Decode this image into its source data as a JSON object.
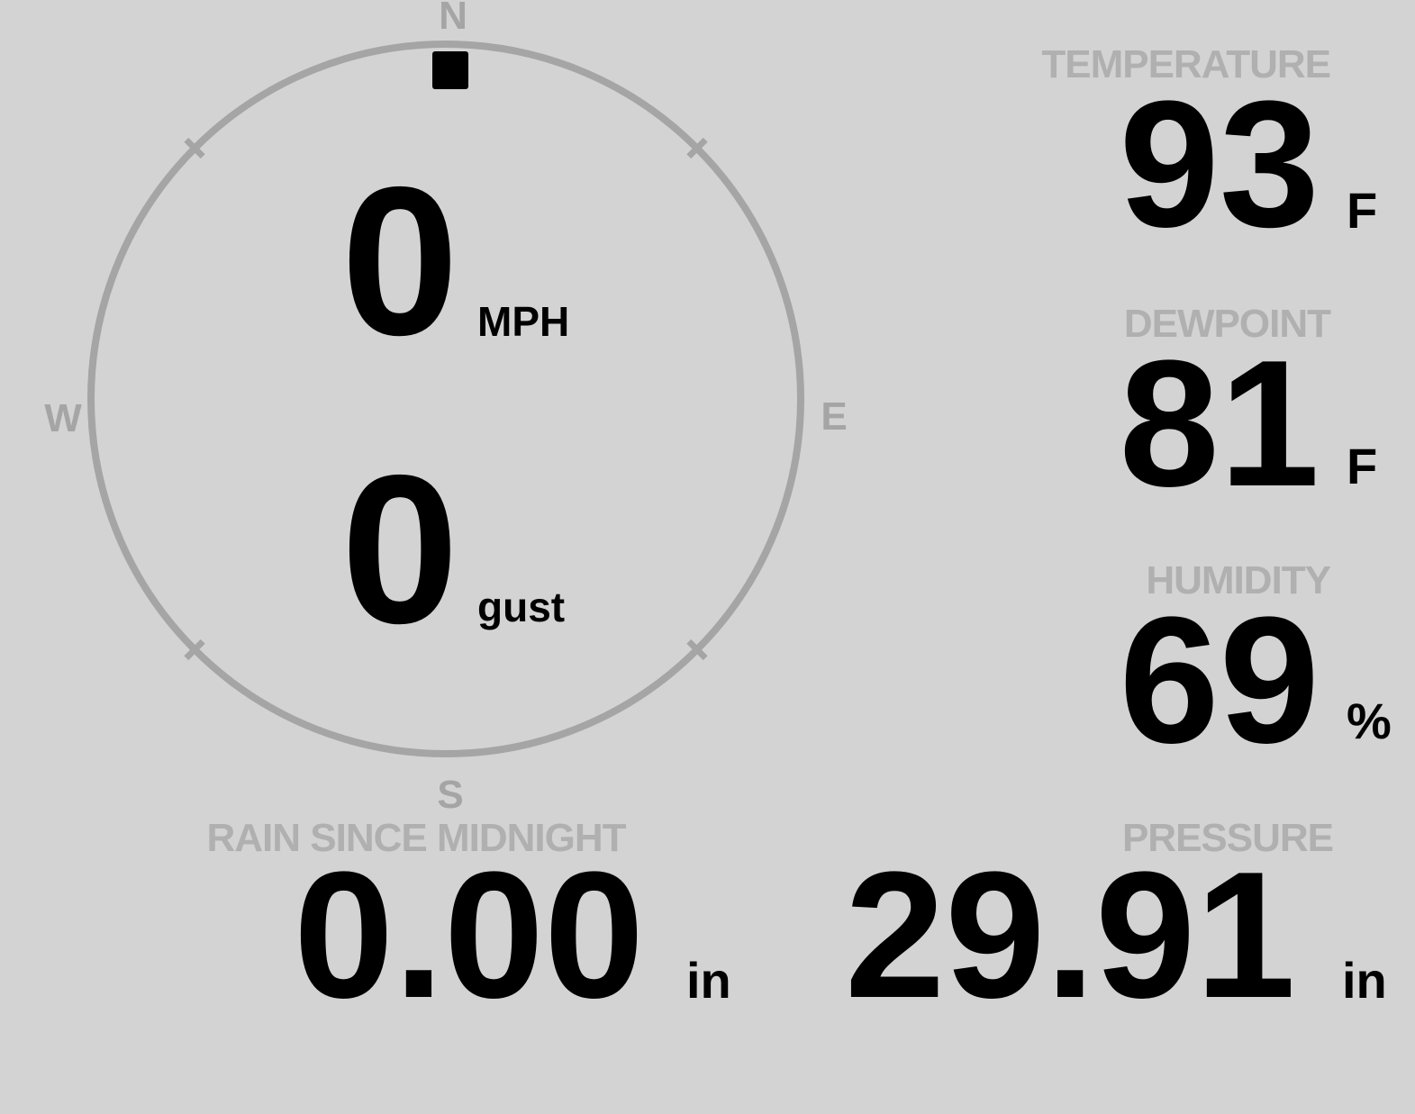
{
  "wind_gauge": {
    "speed": {
      "value": "0",
      "unit": "MPH"
    },
    "gust": {
      "value": "0",
      "unit": "gust"
    },
    "compass": {
      "north": "N",
      "east": "E",
      "south": "S",
      "west": "W"
    },
    "direction_deg": 0
  },
  "metrics": {
    "temperature": {
      "label": "TEMPERATURE",
      "value": "93",
      "unit": "F"
    },
    "dewpoint": {
      "label": "DEWPOINT",
      "value": "81",
      "unit": "F"
    },
    "humidity": {
      "label": "HUMIDITY",
      "value": "69",
      "unit": "%"
    },
    "rain_since_midnight": {
      "label": "RAIN SINCE MIDNIGHT",
      "value": "0.00",
      "unit": "in"
    },
    "pressure": {
      "label": "PRESSURE",
      "value": "29.91",
      "unit": "in"
    }
  },
  "colors": {
    "background": "#d3d3d3",
    "gauge_ring": "#a5a5a5",
    "label_gray": "#b0b0b0",
    "value_black": "#000000",
    "direction_marker": "#000000"
  }
}
